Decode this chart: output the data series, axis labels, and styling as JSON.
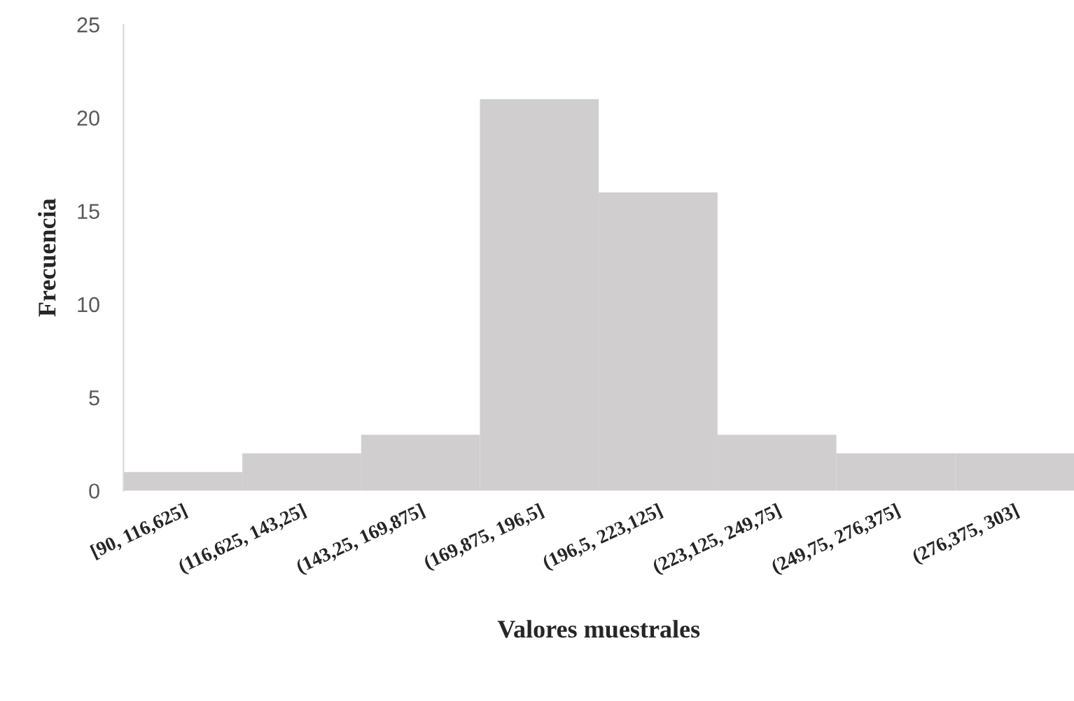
{
  "chart_data": {
    "type": "bar",
    "xlabel": "Valores muestrales",
    "ylabel": "Frecuencia",
    "categories": [
      "[90, 116,625]",
      "(116,625, 143,25]",
      "(143,25, 169,875]",
      "(169,875, 196,5]",
      "(196,5, 223,125]",
      "(223,125, 249,75]",
      "(249,75, 276,375]",
      "(276,375, 303]"
    ],
    "values": [
      1,
      2,
      3,
      21,
      16,
      3,
      2,
      2
    ],
    "color": "#d0cece",
    "ylim": [
      0,
      25
    ],
    "yticks": [
      0,
      5,
      10,
      15,
      20,
      25
    ],
    "grid": false
  }
}
